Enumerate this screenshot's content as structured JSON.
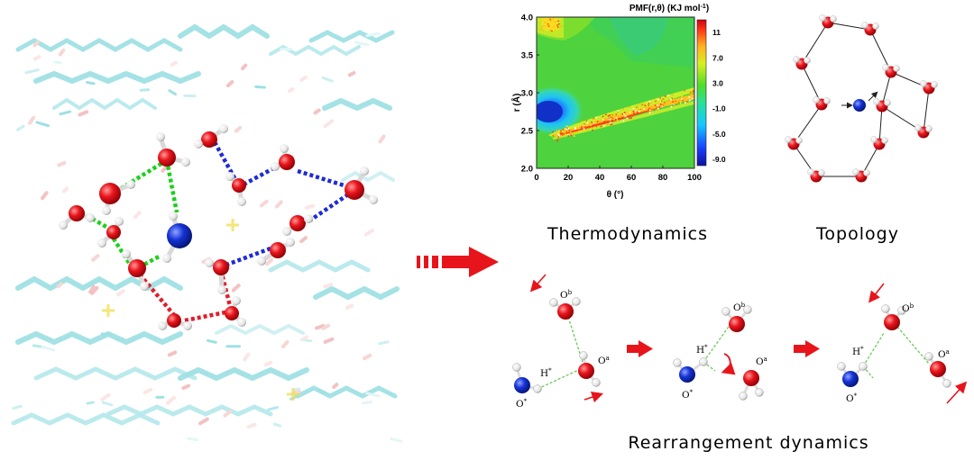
{
  "captions": {
    "thermo": "Thermodynamics",
    "topo": "Topology",
    "rearr": "Rearrangement dynamics"
  },
  "pmf": {
    "title": "PMF(r,θ) (KJ mol",
    "title_sup": "-1",
    "title_end": ")",
    "ylabel": "r (Å)",
    "xlabel": "θ (°)",
    "yticks": [
      "4.0",
      "3.5",
      "3.0",
      "2.5",
      "2.0"
    ],
    "xticks": [
      "0",
      "20",
      "40",
      "60",
      "80",
      "100"
    ],
    "cbar_ticks": [
      "11",
      "7.0",
      "3.0",
      "-1.0",
      "-5.0",
      "-9.0"
    ],
    "xlim": [
      0,
      100
    ],
    "ylim": [
      2.0,
      4.0
    ],
    "clim": [
      -10,
      13
    ]
  },
  "labels": {
    "Ob": "O",
    "Ob_sup": "b",
    "Oa": "O",
    "Oa_sup": "a",
    "Ostar": "O",
    "Ostar_sup": "*",
    "Hstar": "H",
    "Hstar_sup": "*"
  },
  "colors": {
    "oxygen": "#e8141b",
    "nitrogen": "#1533d6",
    "hydrogen": "#f4f4f4",
    "hbond_green": "#1ad11a",
    "hbond_blue": "#1e2bd6",
    "hbond_red": "#e01e2a",
    "arrow": "#e8141b",
    "lipid": "#7fd3d6"
  }
}
